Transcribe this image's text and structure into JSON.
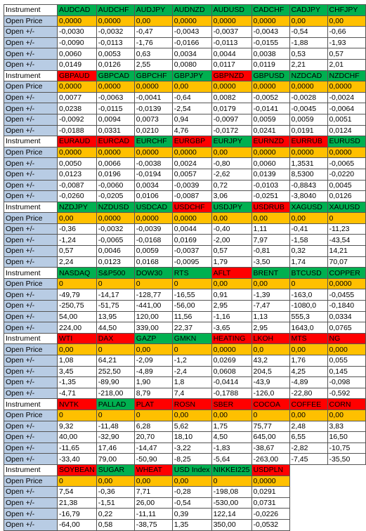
{
  "labels": {
    "instrument": "Instrument",
    "open_price": "Open Price",
    "open_delta": "Open +/-"
  },
  "colors": {
    "label_bg": "#b8cce4",
    "green": "#00b050",
    "red": "#ff0000",
    "orange": "#ffc000",
    "white": "#ffffff"
  },
  "blocks": [
    {
      "instruments": [
        {
          "name": "AUDCAD",
          "color": "g"
        },
        {
          "name": "AUDCHF",
          "color": "g"
        },
        {
          "name": "AUDJPY",
          "color": "g"
        },
        {
          "name": "AUDNZD",
          "color": "g"
        },
        {
          "name": "AUDUSD",
          "color": "g"
        },
        {
          "name": "CADCHF",
          "color": "g"
        },
        {
          "name": "CADJPY",
          "color": "g"
        },
        {
          "name": "CHFJPY",
          "color": "g"
        }
      ],
      "open_price": [
        "0,0000",
        "0,0000",
        "0,00",
        "0,0000",
        "0,0000",
        "0,0000",
        "0,00",
        "0,00"
      ],
      "deltas": [
        [
          "-0,0030",
          "-0,0032",
          "-0,47",
          "-0,0043",
          "-0,0037",
          "-0,0043",
          "-0,54",
          "-0,66"
        ],
        [
          "-0,0090",
          "-0,0113",
          "-1,76",
          "-0,0166",
          "-0,0113",
          "-0,0155",
          "-1,88",
          "-1,93"
        ],
        [
          "0,0060",
          "0,0053",
          "0,63",
          "0,0034",
          "0,0044",
          "0,0038",
          "0,53",
          "0,57"
        ],
        [
          "0,0149",
          "0,0126",
          "2,55",
          "0,0080",
          "0,0117",
          "0,0119",
          "2,21",
          "2,01"
        ]
      ]
    },
    {
      "instruments": [
        {
          "name": "GBPAUD",
          "color": "r"
        },
        {
          "name": "GBPCAD",
          "color": "g"
        },
        {
          "name": "GBPCHF",
          "color": "g"
        },
        {
          "name": "GBPJPY",
          "color": "g"
        },
        {
          "name": "GBPNZD",
          "color": "r"
        },
        {
          "name": "GBPUSD",
          "color": "g"
        },
        {
          "name": "NZDCAD",
          "color": "g"
        },
        {
          "name": "NZDCHF",
          "color": "g"
        }
      ],
      "open_price": [
        "0,0000",
        "0,0000",
        "0,0000",
        "0,00",
        "0,0000",
        "0,0000",
        "0,0000",
        "0,0000"
      ],
      "deltas": [
        [
          "0,0077",
          "-0,0063",
          "-0,0041",
          "-0,64",
          "0,0082",
          "-0,0052",
          "-0,0028",
          "-0,0024"
        ],
        [
          "0,0238",
          "-0,0115",
          "-0,0139",
          "-2,54",
          "0,0179",
          "-0,0141",
          "-0,0045",
          "-0,0064"
        ],
        [
          "-0,0092",
          "0,0094",
          "0,0073",
          "0,94",
          "-0,0097",
          "0,0059",
          "0,0059",
          "0,0051"
        ],
        [
          "-0,0188",
          "0,0331",
          "0,0210",
          "4,76",
          "-0,0172",
          "0,0241",
          "0,0191",
          "0,0124"
        ]
      ]
    },
    {
      "instruments": [
        {
          "name": "EURAUD",
          "color": "r"
        },
        {
          "name": "EURCAD",
          "color": "r"
        },
        {
          "name": "EURCHF",
          "color": "g"
        },
        {
          "name": "EURGBP",
          "color": "r"
        },
        {
          "name": "EURJPY",
          "color": "g"
        },
        {
          "name": "EURNZD",
          "color": "r"
        },
        {
          "name": "EURRUB",
          "color": "r"
        },
        {
          "name": "EURUSD",
          "color": "g"
        }
      ],
      "open_price": [
        "0,0000",
        "0,0000",
        "0,0000",
        "0,0000",
        "0,00",
        "0,0000",
        "0,0000",
        "0,0000"
      ],
      "deltas": [
        [
          "0,0050",
          "0,0066",
          "-0,0038",
          "0,0024",
          "-0,80",
          "0,0060",
          "1,3531",
          "-0,0065"
        ],
        [
          "0,0123",
          "0,0196",
          "-0,0194",
          "0,0057",
          "-2,62",
          "0,0139",
          "8,5300",
          "-0,0220"
        ],
        [
          "-0,0087",
          "-0,0060",
          "0,0034",
          "-0,0039",
          "0,72",
          "-0,0103",
          "-0,8843",
          "0,0045"
        ],
        [
          "-0,0260",
          "-0,0205",
          "0,0106",
          "-0,0087",
          "3,06",
          "-0,0251",
          "-3,8040",
          "0,0126"
        ]
      ]
    },
    {
      "instruments": [
        {
          "name": "NZDJPY",
          "color": "g"
        },
        {
          "name": "NZDUSD",
          "color": "g"
        },
        {
          "name": "USDCAD",
          "color": "g"
        },
        {
          "name": "USDCHF",
          "color": "r"
        },
        {
          "name": "USDJPY",
          "color": "g"
        },
        {
          "name": "USDRUB",
          "color": "r"
        },
        {
          "name": "XAGUSD",
          "color": "g"
        },
        {
          "name": "XAUUSD",
          "color": "g"
        }
      ],
      "open_price": [
        "0,00",
        "0,0000",
        "0,0000",
        "0,0000",
        "0,00",
        "0,00",
        "0,00",
        "0"
      ],
      "deltas": [
        [
          "-0,36",
          "-0,0032",
          "-0,0039",
          "0,0044",
          "-0,40",
          "1,11",
          "-0,41",
          "-11,23"
        ],
        [
          "-1,24",
          "-0,0065",
          "-0,0168",
          "0,0169",
          "-2,00",
          "7,97",
          "-1,58",
          "-43,54"
        ],
        [
          "0,57",
          "0,0046",
          "0,0059",
          "-0,0037",
          "0,57",
          "-0,81",
          "0,32",
          "14,21"
        ],
        [
          "2,24",
          "0,0123",
          "0,0168",
          "-0,0095",
          "1,79",
          "-3,50",
          "1,74",
          "70,07"
        ]
      ]
    },
    {
      "instruments": [
        {
          "name": "NASDAQ",
          "color": "g"
        },
        {
          "name": "S&P500",
          "color": "g"
        },
        {
          "name": "DOW30",
          "color": "g"
        },
        {
          "name": "RTS",
          "color": "g"
        },
        {
          "name": "AFLT",
          "color": "r"
        },
        {
          "name": "BRENT",
          "color": "g"
        },
        {
          "name": "BTCUSD",
          "color": "g"
        },
        {
          "name": "COPPER",
          "color": "g"
        }
      ],
      "open_price": [
        "0",
        "0",
        "0",
        "0",
        "0,00",
        "0,00",
        "0",
        "0,0000"
      ],
      "deltas": [
        [
          "-49,79",
          "-14,17",
          "-128,77",
          "-16,55",
          "0,91",
          "-1,39",
          "-163,0",
          "-0,0455"
        ],
        [
          "-250,75",
          "-51,75",
          "-441,00",
          "-56,00",
          "2,95",
          "-7,47",
          "-1080,0",
          "-0,1840"
        ],
        [
          "54,00",
          "13,95",
          "120,00",
          "11,56",
          "-1,16",
          "1,13",
          "555,3",
          "0,0334"
        ],
        [
          "224,00",
          "44,50",
          "339,00",
          "22,37",
          "-3,65",
          "2,95",
          "1643,0",
          "0,0765"
        ]
      ]
    },
    {
      "instruments": [
        {
          "name": "WTI",
          "color": "r"
        },
        {
          "name": "DAX",
          "color": "r"
        },
        {
          "name": "GAZP",
          "color": "g"
        },
        {
          "name": "GMKN",
          "color": "g"
        },
        {
          "name": "HEATING",
          "color": "r"
        },
        {
          "name": "LKOH",
          "color": "r"
        },
        {
          "name": "MTS",
          "color": "r"
        },
        {
          "name": "NG",
          "color": "r"
        }
      ],
      "open_price": [
        "0,00",
        "0",
        "0,00",
        "0",
        "0,0000",
        "0,0",
        "0,00",
        "0,000"
      ],
      "deltas": [
        [
          "1,08",
          "64,21",
          "-2,09",
          "-1,2",
          "0,0269",
          "43,2",
          "1,76",
          "0,055"
        ],
        [
          "3,45",
          "252,50",
          "-4,89",
          "-2,4",
          "0,0608",
          "204,5",
          "4,25",
          "0,145"
        ],
        [
          "-1,35",
          "-89,90",
          "1,90",
          "1,8",
          "-0,0414",
          "-43,9",
          "-4,89",
          "-0,098"
        ],
        [
          "-4,71",
          "-218,00",
          "8,79",
          "7,4",
          "-0,1788",
          "-126,0",
          "-22,80",
          "-0,592"
        ]
      ]
    },
    {
      "instruments": [
        {
          "name": "NVTK",
          "color": "r"
        },
        {
          "name": "PALLAD",
          "color": "g"
        },
        {
          "name": "PLAT",
          "color": "r"
        },
        {
          "name": "ROSN",
          "color": "r"
        },
        {
          "name": "SBER",
          "color": "r"
        },
        {
          "name": "COCOA",
          "color": "r"
        },
        {
          "name": "COFFEE",
          "color": "r"
        },
        {
          "name": "CORN",
          "color": "r"
        }
      ],
      "open_price": [
        "0",
        "0",
        "0",
        "0,00",
        "0,00",
        "0",
        "0,00",
        "0,00"
      ],
      "deltas": [
        [
          "9,32",
          "-11,48",
          "6,28",
          "5,62",
          "1,75",
          "75,77",
          "2,48",
          "3,83"
        ],
        [
          "40,00",
          "-32,90",
          "20,70",
          "18,10",
          "4,50",
          "645,00",
          "6,55",
          "16,50"
        ],
        [
          "-11,65",
          "17,46",
          "-14,47",
          "-3,22",
          "-1,83",
          "-38,67",
          "-2,82",
          "-10,75"
        ],
        [
          "-33,40",
          "79,00",
          "-50,90",
          "-8,25",
          "-5,64",
          "-263,00",
          "-7,45",
          "-35,50"
        ]
      ]
    },
    {
      "instruments": [
        {
          "name": "SOYBEAN",
          "color": "r"
        },
        {
          "name": "SUGAR",
          "color": "g"
        },
        {
          "name": "WHEAT",
          "color": "r"
        },
        {
          "name": "USD Index",
          "color": "g"
        },
        {
          "name": "NIKKEI225",
          "color": "g"
        },
        {
          "name": "USDPLN",
          "color": "r"
        }
      ],
      "open_price": [
        "0",
        "0,00",
        "0,00",
        "0,00",
        "0",
        "0,0000"
      ],
      "deltas": [
        [
          "7,54",
          "-0,36",
          "7,71",
          "-0,28",
          "-198,08",
          "0,0291"
        ],
        [
          "21,38",
          "-1,51",
          "26,00",
          "-0,54",
          "-530,00",
          "0,0731"
        ],
        [
          "-16,79",
          "0,22",
          "-11,11",
          "0,39",
          "122,14",
          "-0,0226"
        ],
        [
          "-64,00",
          "0,58",
          "-38,75",
          "1,35",
          "350,00",
          "-0,0532"
        ]
      ]
    }
  ]
}
